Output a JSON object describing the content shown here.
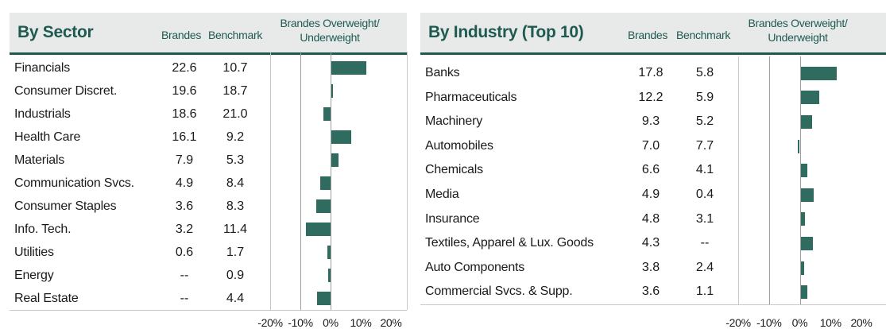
{
  "chart_data": [
    {
      "type": "bar",
      "title": "By Sector",
      "columns": [
        "Brandes",
        "Benchmark",
        "Brandes Overweight/ Underweight"
      ],
      "categories": [
        "Financials",
        "Consumer Discret.",
        "Industrials",
        "Health Care",
        "Materials",
        "Communication Svcs.",
        "Consumer Staples",
        "Info. Tech.",
        "Utilities",
        "Energy",
        "Real Estate"
      ],
      "brandes": [
        "22.6",
        "19.6",
        "18.6",
        "16.1",
        "7.9",
        "4.9",
        "3.6",
        "3.2",
        "0.6",
        "--",
        "--"
      ],
      "benchmark": [
        "10.7",
        "18.7",
        "21.0",
        "9.2",
        "5.3",
        "8.4",
        "8.3",
        "11.4",
        "1.7",
        "0.9",
        "4.4"
      ],
      "series": [
        {
          "values": [
            11.9,
            0.9,
            -2.4,
            6.9,
            2.6,
            -3.5,
            -4.7,
            -8.2,
            -1.1,
            -0.9,
            -4.4
          ]
        }
      ],
      "xticks": [
        "-20%",
        "-10%",
        "0%",
        "10%",
        "20%"
      ],
      "xlim": [
        -20,
        20
      ]
    },
    {
      "type": "bar",
      "title": "By Industry (Top 10)",
      "columns": [
        "Brandes",
        "Benchmark",
        "Brandes Overweight/ Underweight"
      ],
      "categories": [
        "Banks",
        "Pharmaceuticals",
        "Machinery",
        "Automobiles",
        "Chemicals",
        "Media",
        "Insurance",
        "Textiles, Apparel & Lux. Goods",
        "Auto Components",
        "Commercial Svcs. & Supp."
      ],
      "brandes": [
        "17.8",
        "12.2",
        "9.3",
        "7.0",
        "6.6",
        "4.9",
        "4.8",
        "4.3",
        "3.8",
        "3.6"
      ],
      "benchmark": [
        "5.8",
        "5.9",
        "5.2",
        "7.7",
        "4.1",
        "0.4",
        "3.1",
        "--",
        "2.4",
        "1.1"
      ],
      "series": [
        {
          "values": [
            12.0,
            6.3,
            4.1,
            -0.7,
            2.5,
            4.5,
            1.7,
            4.3,
            1.4,
            2.5
          ]
        }
      ],
      "xticks": [
        "-20%",
        "-10%",
        "0%",
        "10%",
        "20%"
      ],
      "xlim": [
        -20,
        20
      ]
    }
  ]
}
